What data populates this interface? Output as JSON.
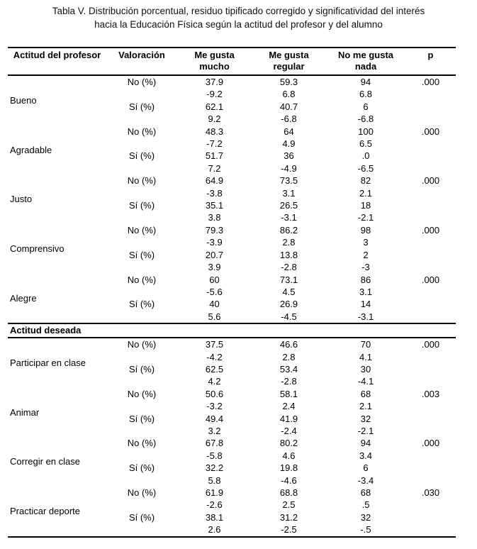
{
  "title": {
    "line1": "Tabla V. Distribución porcentual, residuo tipificado corregido y significatividad del interés",
    "line2": "hacia la Educación Física según la actitud del profesor y del alumno"
  },
  "table": {
    "headers": [
      "Actitud del profesor",
      "Valoración",
      "Me gusta mucho",
      "Me gusta regular",
      "No me gusta nada",
      "p"
    ],
    "sections": [
      {
        "heading": null,
        "groups": [
          {
            "label": "Bueno",
            "rows": [
              {
                "valoracion": "No (%)",
                "values": [
                  "37.9",
                  "59.3",
                  "94"
                ],
                "p": ".000"
              },
              {
                "valoracion": "",
                "values": [
                  "-9.2",
                  "6.8",
                  "6.8"
                ],
                "p": ""
              },
              {
                "valoracion": "Sí (%)",
                "values": [
                  "62.1",
                  "40.7",
                  "6"
                ],
                "p": ""
              },
              {
                "valoracion": "",
                "values": [
                  "9.2",
                  "-6.8",
                  "-6.8"
                ],
                "p": ""
              }
            ]
          },
          {
            "label": "Agradable",
            "rows": [
              {
                "valoracion": "No (%)",
                "values": [
                  "48.3",
                  "64",
                  "100"
                ],
                "p": ".000"
              },
              {
                "valoracion": "",
                "values": [
                  "-7.2",
                  "4.9",
                  "6.5"
                ],
                "p": ""
              },
              {
                "valoracion": "Sí (%)",
                "values": [
                  "51.7",
                  "36",
                  ".0"
                ],
                "p": ""
              },
              {
                "valoracion": "",
                "values": [
                  "7.2",
                  "-4.9",
                  "-6.5"
                ],
                "p": ""
              }
            ]
          },
          {
            "label": "Justo",
            "rows": [
              {
                "valoracion": "No (%)",
                "values": [
                  "64.9",
                  "73.5",
                  "82"
                ],
                "p": ".000"
              },
              {
                "valoracion": "",
                "values": [
                  "-3.8",
                  "3.1",
                  "2.1"
                ],
                "p": ""
              },
              {
                "valoracion": "Sí (%)",
                "values": [
                  "35.1",
                  "26.5",
                  "18"
                ],
                "p": ""
              },
              {
                "valoracion": "",
                "values": [
                  "3.8",
                  "-3.1",
                  "-2.1"
                ],
                "p": ""
              }
            ]
          },
          {
            "label": "Comprensivo",
            "rows": [
              {
                "valoracion": "No (%)",
                "values": [
                  "79.3",
                  "86.2",
                  "98"
                ],
                "p": ".000"
              },
              {
                "valoracion": "",
                "values": [
                  "-3.9",
                  "2.8",
                  "3"
                ],
                "p": ""
              },
              {
                "valoracion": "Sí (%)",
                "values": [
                  "20.7",
                  "13.8",
                  "2"
                ],
                "p": ""
              },
              {
                "valoracion": "",
                "values": [
                  "3.9",
                  "-2.8",
                  "-3"
                ],
                "p": ""
              }
            ]
          },
          {
            "label": "Alegre",
            "rows": [
              {
                "valoracion": "No (%)",
                "values": [
                  "60",
                  "73.1",
                  "86"
                ],
                "p": ".000"
              },
              {
                "valoracion": "",
                "values": [
                  "-5.6",
                  "4.5",
                  "3.1"
                ],
                "p": ""
              },
              {
                "valoracion": "Sí (%)",
                "values": [
                  "40",
                  "26.9",
                  "14"
                ],
                "p": ""
              },
              {
                "valoracion": "",
                "values": [
                  "5.6",
                  "-4.5",
                  "-3.1"
                ],
                "p": ""
              }
            ]
          }
        ]
      },
      {
        "heading": "Actitud deseada",
        "groups": [
          {
            "label": "Participar en clase",
            "rows": [
              {
                "valoracion": "No (%)",
                "values": [
                  "37.5",
                  "46.6",
                  "70"
                ],
                "p": ".000"
              },
              {
                "valoracion": "",
                "values": [
                  "-4.2",
                  "2.8",
                  "4.1"
                ],
                "p": ""
              },
              {
                "valoracion": "Sí (%)",
                "values": [
                  "62.5",
                  "53.4",
                  "30"
                ],
                "p": ""
              },
              {
                "valoracion": "",
                "values": [
                  "4.2",
                  "-2.8",
                  "-4.1"
                ],
                "p": ""
              }
            ]
          },
          {
            "label": "Animar",
            "rows": [
              {
                "valoracion": "No (%)",
                "values": [
                  "50.6",
                  "58.1",
                  "68"
                ],
                "p": ".003"
              },
              {
                "valoracion": "",
                "values": [
                  "-3.2",
                  "2.4",
                  "2.1"
                ],
                "p": ""
              },
              {
                "valoracion": "Sí (%)",
                "values": [
                  "49.4",
                  "41.9",
                  "32"
                ],
                "p": ""
              },
              {
                "valoracion": "",
                "values": [
                  "3.2",
                  "-2.4",
                  "-2.1"
                ],
                "p": ""
              }
            ]
          },
          {
            "label": "Corregir en clase",
            "rows": [
              {
                "valoracion": "No (%)",
                "values": [
                  "67.8",
                  "80.2",
                  "94"
                ],
                "p": ".000"
              },
              {
                "valoracion": "",
                "values": [
                  "-5.8",
                  "4.6",
                  "3.4"
                ],
                "p": ""
              },
              {
                "valoracion": "Sí (%)",
                "values": [
                  "32.2",
                  "19.8",
                  "6"
                ],
                "p": ""
              },
              {
                "valoracion": "",
                "values": [
                  "5.8",
                  "-4.6",
                  "-3.4"
                ],
                "p": ""
              }
            ]
          },
          {
            "label": "Practicar deporte",
            "rows": [
              {
                "valoracion": "No (%)",
                "values": [
                  "61.9",
                  "68.8",
                  "68"
                ],
                "p": ".030"
              },
              {
                "valoracion": "",
                "values": [
                  "-2.6",
                  "2.5",
                  ".5"
                ],
                "p": ""
              },
              {
                "valoracion": "Sí (%)",
                "values": [
                  "38.1",
                  "31.2",
                  "32"
                ],
                "p": ""
              },
              {
                "valoracion": "",
                "values": [
                  "2.6",
                  "-2.5",
                  "-.5"
                ],
                "p": ""
              }
            ]
          }
        ]
      }
    ]
  }
}
